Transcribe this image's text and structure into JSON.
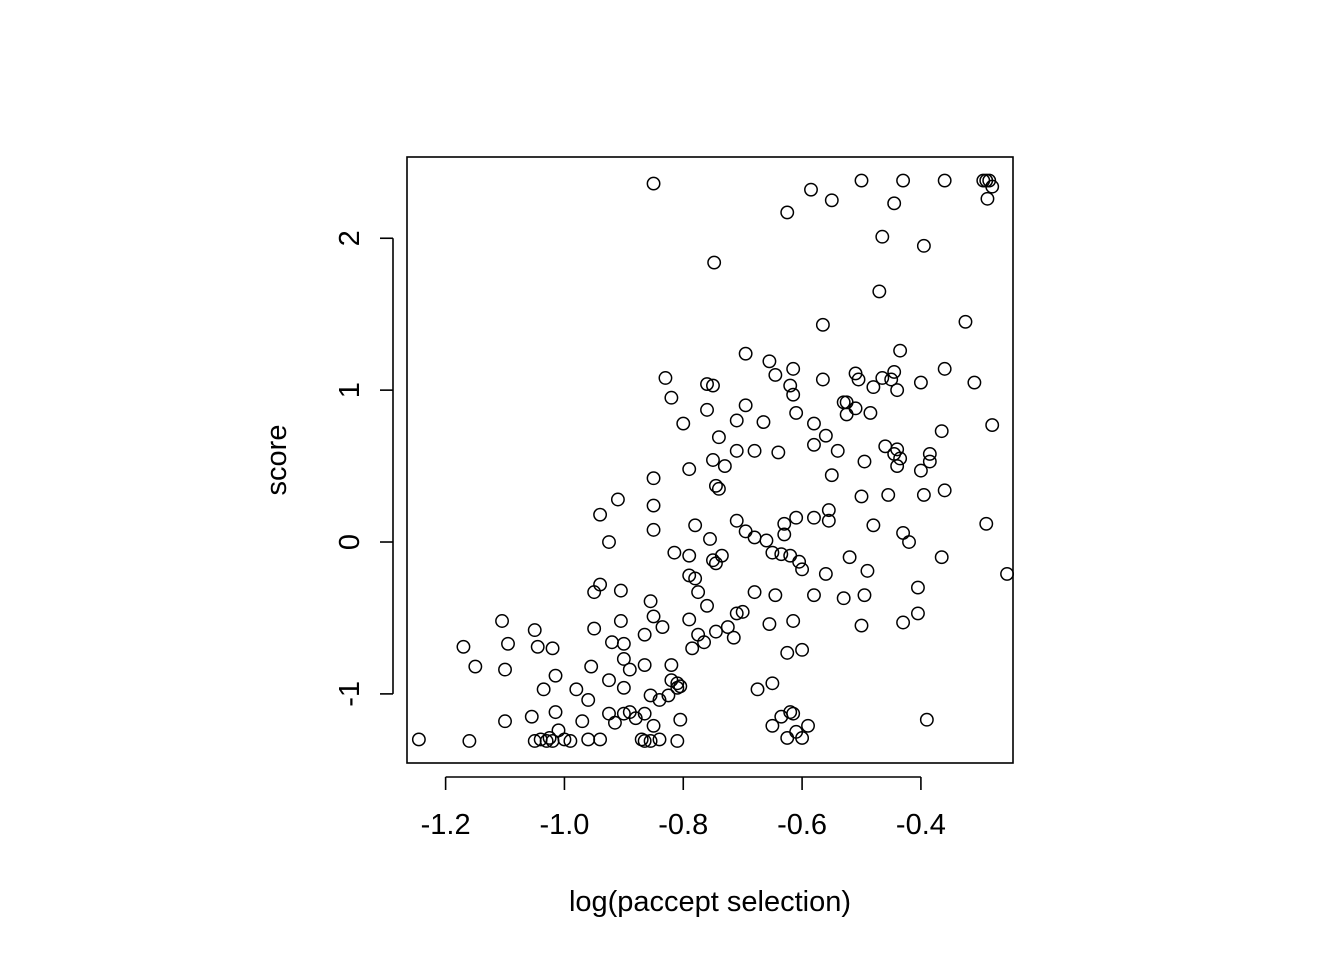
{
  "chart_data": {
    "type": "scatter",
    "title": "",
    "xlabel": "log(paccept selection)",
    "ylabel": "score",
    "xlim": [
      -1.265,
      -0.245
    ],
    "ylim": [
      -1.455,
      2.535
    ],
    "x_ticks": [
      {
        "value": -1.2,
        "label": "-1.2"
      },
      {
        "value": -1.0,
        "label": "-1.0"
      },
      {
        "value": -0.8,
        "label": "-0.8"
      },
      {
        "value": -0.6,
        "label": "-0.6"
      },
      {
        "value": -0.4,
        "label": "-0.4"
      }
    ],
    "y_ticks": [
      {
        "value": -1,
        "label": "-1"
      },
      {
        "value": 0,
        "label": "0"
      },
      {
        "value": 1,
        "label": "1"
      },
      {
        "value": 2,
        "label": "2"
      }
    ],
    "grid": false,
    "marker": "open-circle",
    "points": [
      [
        -1.245,
        -1.3
      ],
      [
        -1.16,
        -1.31
      ],
      [
        -1.05,
        -1.31
      ],
      [
        -1.04,
        -1.3
      ],
      [
        -1.03,
        -1.31
      ],
      [
        -1.025,
        -1.29
      ],
      [
        -1.02,
        -1.31
      ],
      [
        -1.0,
        -1.3
      ],
      [
        -0.99,
        -1.31
      ],
      [
        -0.96,
        -1.3
      ],
      [
        -0.94,
        -1.3
      ],
      [
        -0.87,
        -1.3
      ],
      [
        -0.865,
        -1.31
      ],
      [
        -0.855,
        -1.31
      ],
      [
        -0.84,
        -1.3
      ],
      [
        -0.81,
        -1.31
      ],
      [
        -1.17,
        -0.69
      ],
      [
        -1.15,
        -0.82
      ],
      [
        -1.105,
        -0.52
      ],
      [
        -1.1,
        -0.84
      ],
      [
        -1.095,
        -0.67
      ],
      [
        -1.1,
        -1.18
      ],
      [
        -1.055,
        -1.15
      ],
      [
        -1.05,
        -0.58
      ],
      [
        -1.045,
        -0.69
      ],
      [
        -1.035,
        -0.97
      ],
      [
        -1.02,
        -0.7
      ],
      [
        -1.015,
        -0.88
      ],
      [
        -1.015,
        -1.12
      ],
      [
        -1.01,
        -1.24
      ],
      [
        -0.98,
        -0.97
      ],
      [
        -0.97,
        -1.18
      ],
      [
        -0.96,
        -1.04
      ],
      [
        -0.955,
        -0.82
      ],
      [
        -0.95,
        -0.57
      ],
      [
        -0.95,
        -0.33
      ],
      [
        -0.94,
        -0.28
      ],
      [
        -0.94,
        0.18
      ],
      [
        -0.925,
        -0.91
      ],
      [
        -0.925,
        -1.13
      ],
      [
        -0.92,
        -0.66
      ],
      [
        -0.915,
        -1.19
      ],
      [
        -0.91,
        0.28
      ],
      [
        -0.905,
        -0.32
      ],
      [
        -0.905,
        -0.52
      ],
      [
        -0.9,
        -0.67
      ],
      [
        -0.9,
        -0.77
      ],
      [
        -0.9,
        -0.96
      ],
      [
        -0.9,
        -1.13
      ],
      [
        -0.89,
        -0.84
      ],
      [
        -0.89,
        -1.12
      ],
      [
        -0.88,
        -1.16
      ],
      [
        -0.865,
        -0.81
      ],
      [
        -0.865,
        -0.61
      ],
      [
        -0.865,
        -1.13
      ],
      [
        -0.855,
        -0.39
      ],
      [
        -0.855,
        -1.01
      ],
      [
        -0.85,
        0.08
      ],
      [
        -0.85,
        0.24
      ],
      [
        -0.85,
        0.42
      ],
      [
        -0.85,
        -0.49
      ],
      [
        -0.85,
        -1.21
      ],
      [
        -0.84,
        -1.04
      ],
      [
        -0.835,
        -0.56
      ],
      [
        -0.83,
        1.08
      ],
      [
        -0.825,
        -1.01
      ],
      [
        -0.82,
        -0.81
      ],
      [
        -0.82,
        -0.91
      ],
      [
        -0.82,
        0.95
      ],
      [
        -0.925,
        0.0
      ],
      [
        -0.85,
        2.36
      ],
      [
        -0.815,
        -0.07
      ],
      [
        -0.81,
        -0.93
      ],
      [
        -0.81,
        -0.96
      ],
      [
        -0.805,
        -0.95
      ],
      [
        -0.805,
        -1.17
      ],
      [
        -0.8,
        0.78
      ],
      [
        -0.79,
        -0.51
      ],
      [
        -0.79,
        -0.22
      ],
      [
        -0.79,
        -0.09
      ],
      [
        -0.79,
        0.48
      ],
      [
        -0.785,
        -0.7
      ],
      [
        -0.78,
        -0.24
      ],
      [
        -0.78,
        0.11
      ],
      [
        -0.775,
        -0.61
      ],
      [
        -0.775,
        -0.33
      ],
      [
        -0.765,
        -0.66
      ],
      [
        -0.76,
        -0.42
      ],
      [
        -0.76,
        0.87
      ],
      [
        -0.76,
        1.04
      ],
      [
        -0.755,
        0.02
      ],
      [
        -0.75,
        -0.12
      ],
      [
        -0.75,
        0.54
      ],
      [
        -0.75,
        1.03
      ],
      [
        -0.745,
        -0.14
      ],
      [
        -0.745,
        0.37
      ],
      [
        -0.745,
        -0.59
      ],
      [
        -0.74,
        0.69
      ],
      [
        -0.74,
        0.35
      ],
      [
        -0.735,
        -0.09
      ],
      [
        -0.73,
        0.5
      ],
      [
        -0.725,
        -0.56
      ],
      [
        -0.715,
        -0.63
      ],
      [
        -0.71,
        0.14
      ],
      [
        -0.71,
        0.6
      ],
      [
        -0.71,
        0.8
      ],
      [
        -0.71,
        -0.47
      ],
      [
        -0.7,
        -0.46
      ],
      [
        -0.695,
        0.9
      ],
      [
        -0.695,
        1.24
      ],
      [
        -0.695,
        0.07
      ],
      [
        -0.68,
        0.6
      ],
      [
        -0.68,
        -0.33
      ],
      [
        -0.68,
        0.03
      ],
      [
        -0.675,
        -0.97
      ],
      [
        -0.665,
        0.79
      ],
      [
        -0.66,
        0.01
      ],
      [
        -0.655,
        1.19
      ],
      [
        -0.655,
        -0.54
      ],
      [
        -0.65,
        -0.93
      ],
      [
        -0.65,
        -0.07
      ],
      [
        -0.65,
        -1.21
      ],
      [
        -0.645,
        -0.35
      ],
      [
        -0.645,
        1.1
      ],
      [
        -0.64,
        0.59
      ],
      [
        -0.635,
        -0.08
      ],
      [
        -0.635,
        -1.15
      ],
      [
        -0.63,
        0.05
      ],
      [
        -0.63,
        0.12
      ],
      [
        -0.625,
        2.17
      ],
      [
        -0.625,
        -0.73
      ],
      [
        -0.625,
        -1.29
      ],
      [
        -0.62,
        1.03
      ],
      [
        -0.62,
        -0.09
      ],
      [
        -0.62,
        -1.12
      ],
      [
        -0.615,
        0.97
      ],
      [
        -0.615,
        1.14
      ],
      [
        -0.615,
        -1.13
      ],
      [
        -0.615,
        -0.52
      ],
      [
        -0.61,
        -1.25
      ],
      [
        -0.61,
        0.85
      ],
      [
        -0.61,
        0.16
      ],
      [
        -0.605,
        -0.13
      ],
      [
        -0.6,
        -0.18
      ],
      [
        -0.6,
        -0.71
      ],
      [
        -0.6,
        -1.29
      ],
      [
        -0.59,
        -1.21
      ],
      [
        -0.748,
        1.84
      ],
      [
        -0.585,
        2.32
      ],
      [
        -0.58,
        0.16
      ],
      [
        -0.58,
        0.78
      ],
      [
        -0.58,
        0.64
      ],
      [
        -0.58,
        -0.35
      ],
      [
        -0.565,
        1.07
      ],
      [
        -0.565,
        1.43
      ],
      [
        -0.56,
        -0.21
      ],
      [
        -0.56,
        0.7
      ],
      [
        -0.555,
        0.14
      ],
      [
        -0.555,
        0.21
      ],
      [
        -0.55,
        0.44
      ],
      [
        -0.55,
        2.25
      ],
      [
        -0.54,
        0.6
      ],
      [
        -0.53,
        0.92
      ],
      [
        -0.53,
        -0.37
      ],
      [
        -0.525,
        0.92
      ],
      [
        -0.525,
        0.84
      ],
      [
        -0.52,
        -0.1
      ],
      [
        -0.51,
        1.11
      ],
      [
        -0.51,
        0.88
      ],
      [
        -0.505,
        1.07
      ],
      [
        -0.5,
        2.38
      ],
      [
        -0.5,
        0.3
      ],
      [
        -0.5,
        -0.55
      ],
      [
        -0.495,
        0.53
      ],
      [
        -0.495,
        -0.35
      ],
      [
        -0.49,
        -0.19
      ],
      [
        -0.485,
        0.85
      ],
      [
        -0.48,
        1.02
      ],
      [
        -0.48,
        0.11
      ],
      [
        -0.47,
        1.65
      ],
      [
        -0.465,
        2.01
      ],
      [
        -0.465,
        1.08
      ],
      [
        -0.46,
        0.63
      ],
      [
        -0.455,
        0.31
      ],
      [
        -0.45,
        1.07
      ],
      [
        -0.445,
        2.23
      ],
      [
        -0.445,
        0.58
      ],
      [
        -0.445,
        1.12
      ],
      [
        -0.44,
        1.0
      ],
      [
        -0.44,
        0.5
      ],
      [
        -0.44,
        0.61
      ],
      [
        -0.435,
        0.55
      ],
      [
        -0.435,
        1.26
      ],
      [
        -0.43,
        0.06
      ],
      [
        -0.43,
        2.38
      ],
      [
        -0.43,
        -0.53
      ],
      [
        -0.42,
        0.0
      ],
      [
        -0.405,
        -0.3
      ],
      [
        -0.405,
        -0.47
      ],
      [
        -0.4,
        1.05
      ],
      [
        -0.4,
        0.47
      ],
      [
        -0.395,
        0.31
      ],
      [
        -0.395,
        1.95
      ],
      [
        -0.39,
        -1.17
      ],
      [
        -0.385,
        0.53
      ],
      [
        -0.385,
        0.58
      ],
      [
        -0.365,
        -0.1
      ],
      [
        -0.365,
        0.73
      ],
      [
        -0.36,
        0.34
      ],
      [
        -0.36,
        1.14
      ],
      [
        -0.36,
        2.38
      ],
      [
        -0.325,
        1.45
      ],
      [
        -0.31,
        1.05
      ],
      [
        -0.295,
        2.38
      ],
      [
        -0.29,
        2.38
      ],
      [
        -0.29,
        0.12
      ],
      [
        -0.288,
        2.26
      ],
      [
        -0.285,
        2.38
      ],
      [
        -0.28,
        2.34
      ],
      [
        -0.28,
        0.77
      ],
      [
        -0.255,
        -0.21
      ]
    ]
  }
}
